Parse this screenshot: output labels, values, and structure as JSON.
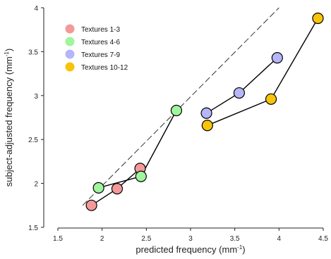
{
  "chart_data": {
    "type": "scatter",
    "xlabel": "predicted frequency",
    "xlabel_unit": "(mm",
    "xlabel_unit_exp": "-1",
    "xlabel_unit_close": ")",
    "ylabel": "subject-adjusted frequency",
    "ylabel_unit": "(mm",
    "ylabel_unit_exp": "-1",
    "ylabel_unit_close": ")",
    "xlim": [
      1.5,
      4.5
    ],
    "ylim": [
      1.5,
      4.0
    ],
    "xticks": [
      1.5,
      2,
      2.5,
      3,
      3.5,
      4,
      4.5
    ],
    "xtick_labels": [
      "1.5",
      "2",
      "2.5",
      "3",
      "3.5",
      "4",
      "4.5"
    ],
    "yticks": [
      1.5,
      2,
      2.5,
      3,
      3.5,
      4
    ],
    "ytick_labels": [
      "1.5",
      "2",
      "2.5",
      "3",
      "3.5",
      "4"
    ],
    "grid": false,
    "legend_position": "top-left",
    "reference_line": {
      "style": "dashed",
      "color": "#333333",
      "points": [
        [
          1.78,
          1.75
        ],
        [
          4.0,
          4.0
        ]
      ]
    },
    "series": [
      {
        "name": "Textures 1-3",
        "color": "#f4999a",
        "x": [
          1.88,
          2.17,
          2.43
        ],
        "y": [
          1.75,
          1.94,
          2.17
        ],
        "path": [
          [
            1.88,
            1.75
          ],
          [
            2.17,
            1.94
          ],
          [
            2.43,
            2.17
          ]
        ]
      },
      {
        "name": "Textures 4-6",
        "color": "#a0f59d",
        "x": [
          1.96,
          2.44,
          2.84
        ],
        "y": [
          1.95,
          2.08,
          2.83
        ],
        "path": [
          [
            1.96,
            1.95
          ],
          [
            2.44,
            2.08
          ],
          [
            2.84,
            2.83
          ]
        ]
      },
      {
        "name": "Textures 7-9",
        "color": "#b5b5f7",
        "x": [
          3.18,
          3.55,
          3.98
        ],
        "y": [
          2.8,
          3.03,
          3.43
        ],
        "path": [
          [
            3.18,
            2.8
          ],
          [
            3.55,
            3.03
          ],
          [
            3.98,
            3.43
          ]
        ]
      },
      {
        "name": "Textures 10-12",
        "color": "#f7c40a",
        "x": [
          3.19,
          3.91,
          4.44
        ],
        "y": [
          2.66,
          2.96,
          3.88
        ],
        "path": [
          [
            3.19,
            2.66
          ],
          [
            3.91,
            2.96
          ],
          [
            4.44,
            3.88
          ]
        ]
      }
    ]
  }
}
